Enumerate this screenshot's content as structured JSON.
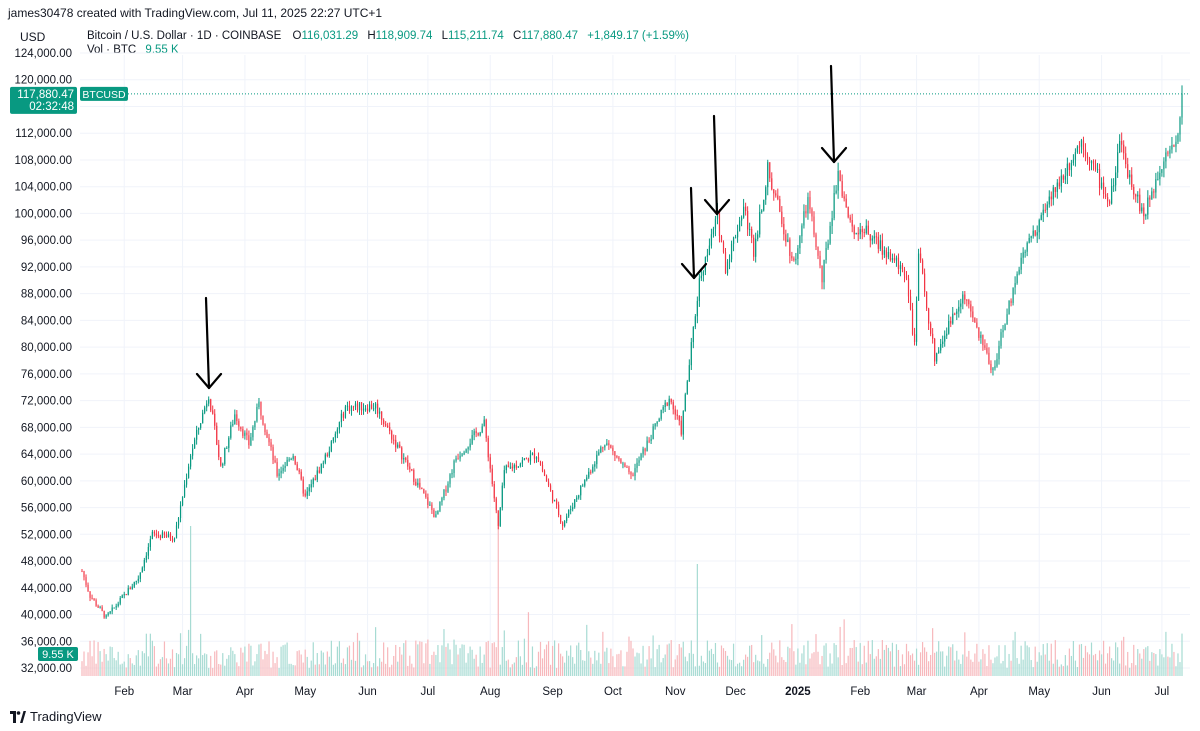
{
  "header": {
    "attribution": "james30478 created with TradingView.com, Jul 11, 2025 22:27 UTC+1",
    "currency": "USD",
    "symbol_desc": "Bitcoin / U.S. Dollar · 1D · COINBASE",
    "open_label": "O",
    "open": "116,031.29",
    "high_label": "H",
    "high": "118,909.74",
    "low_label": "L",
    "low": "115,211.74",
    "close_label": "C",
    "close": "117,880.47",
    "change": "+1,849.17 (+1.59%)",
    "vol_label": "Vol · BTC",
    "vol_value": "9.55 K"
  },
  "price_tag": {
    "price": "117,880.47",
    "countdown": "02:32:48",
    "symbol": "BTCUSD"
  },
  "vol_tag": "9.55 K",
  "brand": "TradingView",
  "colors": {
    "up": "#089981",
    "down": "#f23645",
    "vol_up": "#a7dbd3",
    "vol_down": "#f7b8bc",
    "grid": "#f0f3fa",
    "tag_bg": "#089981"
  },
  "chart_data": {
    "type": "candlestick",
    "y_ticks": [
      "124,000.00",
      "120,000.00",
      "116,000.00",
      "112,000.00",
      "108,000.00",
      "104,000.00",
      "100,000.00",
      "96,000.00",
      "92,000.00",
      "88,000.00",
      "84,000.00",
      "80,000.00",
      "76,000.00",
      "72,000.00",
      "68,000.00",
      "64,000.00",
      "60,000.00",
      "56,000.00",
      "52,000.00",
      "48,000.00",
      "44,000.00",
      "40,000.00",
      "36,000.00",
      "32,000.00"
    ],
    "ylim": [
      30000,
      126000
    ],
    "x_ticks": [
      "Feb",
      "Mar",
      "Apr",
      "May",
      "Jun",
      "Jul",
      "Aug",
      "Sep",
      "Oct",
      "Nov",
      "Dec",
      "2025",
      "Feb",
      "Mar",
      "Apr",
      "May",
      "Jun",
      "Jul"
    ],
    "x_range": [
      "2024-01-11",
      "2025-07-11"
    ],
    "last_price": 117880.47,
    "price_anchors": [
      [
        "2024-01-11",
        46500
      ],
      [
        "2024-01-15",
        42800
      ],
      [
        "2024-01-23",
        39500
      ],
      [
        "2024-01-31",
        42500
      ],
      [
        "2024-02-08",
        45500
      ],
      [
        "2024-02-15",
        52000
      ],
      [
        "2024-02-26",
        51500
      ],
      [
        "2024-03-05",
        64000
      ],
      [
        "2024-03-14",
        73000
      ],
      [
        "2024-03-20",
        62000
      ],
      [
        "2024-03-27",
        70000
      ],
      [
        "2024-04-03",
        65500
      ],
      [
        "2024-04-08",
        71500
      ],
      [
        "2024-04-17",
        61000
      ],
      [
        "2024-04-25",
        64000
      ],
      [
        "2024-05-01",
        57500
      ],
      [
        "2024-05-15",
        66000
      ],
      [
        "2024-05-21",
        71000
      ],
      [
        "2024-06-05",
        71200
      ],
      [
        "2024-06-24",
        60500
      ],
      [
        "2024-07-05",
        54500
      ],
      [
        "2024-07-15",
        63500
      ],
      [
        "2024-07-29",
        68500
      ],
      [
        "2024-08-05",
        53000
      ],
      [
        "2024-08-08",
        61500
      ],
      [
        "2024-08-24",
        64000
      ],
      [
        "2024-09-06",
        53500
      ],
      [
        "2024-09-27",
        66000
      ],
      [
        "2024-10-10",
        60500
      ],
      [
        "2024-10-29",
        72500
      ],
      [
        "2024-11-04",
        67500
      ],
      [
        "2024-11-13",
        90000
      ],
      [
        "2024-11-22",
        99500
      ],
      [
        "2024-11-26",
        92000
      ],
      [
        "2024-12-05",
        101000
      ],
      [
        "2024-12-10",
        94500
      ],
      [
        "2024-12-17",
        106500
      ],
      [
        "2024-12-30",
        92500
      ],
      [
        "2025-01-06",
        102000
      ],
      [
        "2025-01-13",
        90000
      ],
      [
        "2025-01-21",
        106500
      ],
      [
        "2025-01-27",
        98000
      ],
      [
        "2025-02-03",
        97500
      ],
      [
        "2025-02-24",
        91000
      ],
      [
        "2025-02-28",
        80000
      ],
      [
        "2025-03-02",
        94000
      ],
      [
        "2025-03-10",
        78500
      ],
      [
        "2025-03-24",
        88000
      ],
      [
        "2025-04-08",
        76500
      ],
      [
        "2025-04-22",
        93500
      ],
      [
        "2025-05-08",
        103000
      ],
      [
        "2025-05-22",
        111000
      ],
      [
        "2025-06-05",
        101500
      ],
      [
        "2025-06-10",
        110000
      ],
      [
        "2025-06-22",
        99500
      ],
      [
        "2025-07-03",
        109500
      ],
      [
        "2025-07-09",
        111000
      ],
      [
        "2025-07-11",
        117880
      ]
    ],
    "annotations": [
      "arrow near 2024-03-14 high",
      "arrow near 2024-11-12",
      "arrow near 2024-11-22",
      "arrow near 2025-01-21 high"
    ]
  }
}
